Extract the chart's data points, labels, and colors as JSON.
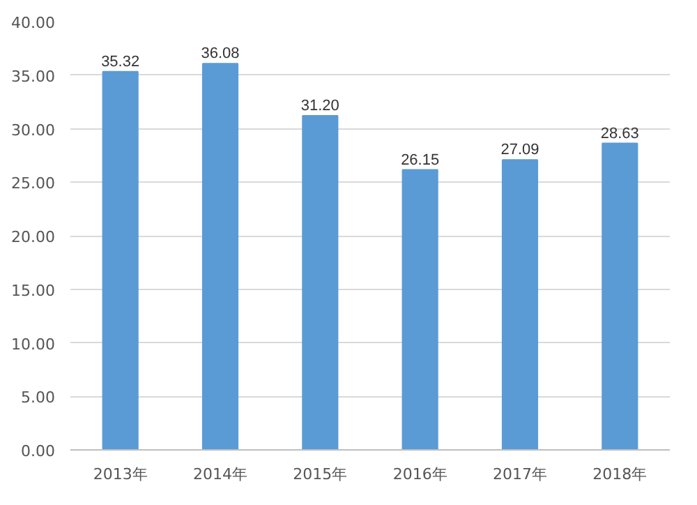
{
  "chart_data": {
    "type": "bar",
    "categories": [
      "2013年",
      "2014年",
      "2015年",
      "2016年",
      "2017年",
      "2018年"
    ],
    "values": [
      35.32,
      36.08,
      31.2,
      26.15,
      27.09,
      28.63
    ],
    "value_labels": [
      "35.32",
      "36.08",
      "31.20",
      "26.15",
      "27.09",
      "28.63"
    ],
    "color": "#5b9bd5",
    "ylim": [
      0,
      40
    ],
    "yticks": [
      {
        "value": 0,
        "label": "0.00"
      },
      {
        "value": 5,
        "label": "5.00"
      },
      {
        "value": 10,
        "label": "10.00"
      },
      {
        "value": 15,
        "label": "15.00"
      },
      {
        "value": 20,
        "label": "20.00"
      },
      {
        "value": 25,
        "label": "25.00"
      },
      {
        "value": 30,
        "label": "30.00"
      },
      {
        "value": 35,
        "label": "35.00"
      },
      {
        "value": 40,
        "label": "40.00"
      }
    ],
    "grid": "y"
  }
}
